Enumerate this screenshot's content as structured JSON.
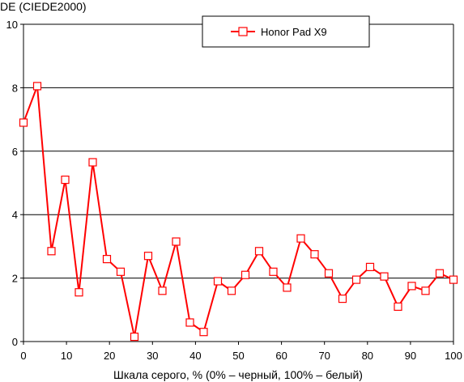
{
  "chart_data": {
    "type": "line",
    "ylabel": "DE (CIEDE2000)",
    "xlabel": "Шкала серого, % (0% – черный, 100% – белый)",
    "xlim": [
      0,
      100
    ],
    "ylim": [
      0,
      10
    ],
    "xticks": [
      "0",
      "10",
      "20",
      "30",
      "40",
      "50",
      "60",
      "70",
      "80",
      "90",
      "100"
    ],
    "yticks": [
      "0",
      "2",
      "4",
      "6",
      "8",
      "10"
    ],
    "grid": "horizontal",
    "legend_position": "top-center",
    "series": [
      {
        "name": "Honor Pad X9",
        "color": "#ff0000",
        "marker": "square",
        "x": [
          0,
          3.2,
          6.5,
          9.7,
          12.9,
          16.1,
          19.4,
          22.6,
          25.8,
          29.0,
          32.3,
          35.5,
          38.7,
          41.9,
          45.2,
          48.4,
          51.6,
          54.8,
          58.1,
          61.3,
          64.5,
          67.7,
          71.0,
          74.2,
          77.4,
          80.6,
          83.9,
          87.1,
          90.3,
          93.5,
          96.8,
          100
        ],
        "y": [
          6.9,
          8.05,
          2.85,
          5.1,
          1.55,
          5.65,
          2.6,
          2.2,
          0.15,
          2.7,
          1.6,
          3.15,
          0.6,
          0.3,
          1.9,
          1.6,
          2.1,
          2.85,
          2.2,
          1.7,
          3.25,
          2.75,
          2.15,
          1.35,
          1.95,
          2.35,
          2.05,
          1.1,
          1.75,
          1.6,
          2.15,
          1.95
        ]
      }
    ]
  }
}
